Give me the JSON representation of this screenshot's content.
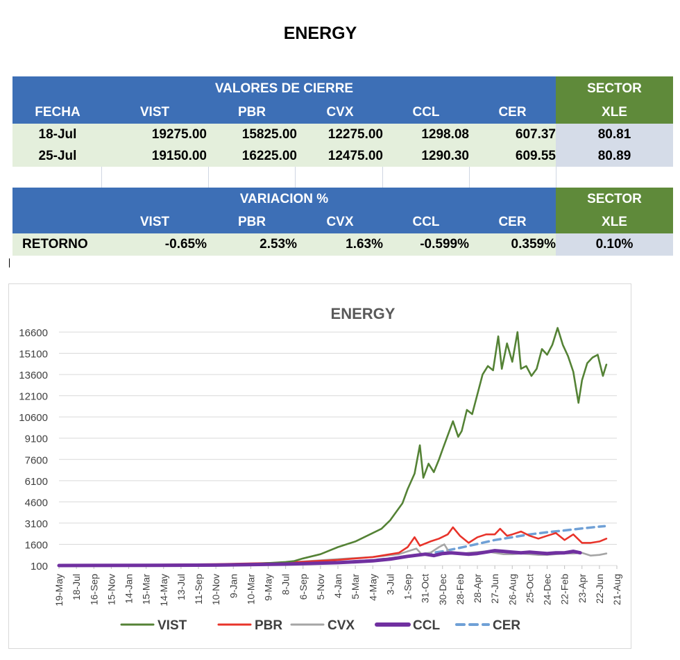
{
  "page_title": "ENERGY",
  "table1": {
    "group_header": "VALORES DE CIERRE",
    "sector_header": "SECTOR",
    "columns": [
      "FECHA",
      "VIST",
      "PBR",
      "CVX",
      "CCL",
      "CER",
      "XLE"
    ],
    "rows": [
      [
        "18-Jul",
        "19275.00",
        "15825.00",
        "12275.00",
        "1298.08",
        "607.37",
        "80.81"
      ],
      [
        "25-Jul",
        "19150.00",
        "16225.00",
        "12475.00",
        "1290.30",
        "609.55",
        "80.89"
      ]
    ]
  },
  "table2": {
    "group_header": "VARIACION %",
    "sector_header": "SECTOR",
    "columns": [
      "",
      "VIST",
      "PBR",
      "CVX",
      "CCL",
      "CER",
      "XLE"
    ],
    "row": [
      "RETORNO",
      "-0.65%",
      "2.53%",
      "1.63%",
      "-0.599%",
      "0.359%",
      "0.10%"
    ]
  },
  "colors": {
    "header_blue": "#3d6fb6",
    "sector_green": "#5f8a3a",
    "data_bg": "#e4efdc",
    "sector_data_bg": "#d5dce8"
  },
  "chart_data": {
    "type": "line",
    "title": "ENERGY",
    "ylim": [
      100,
      16600
    ],
    "yticks": [
      100,
      1600,
      3100,
      4600,
      6100,
      7600,
      9100,
      10600,
      12100,
      13600,
      15100,
      16600
    ],
    "xticks": [
      "19-May",
      "18-Jul",
      "16-Sep",
      "15-Nov",
      "14-Jan",
      "15-Mar",
      "14-May",
      "13-Jul",
      "11-Sep",
      "10-Nov",
      "9-Jan",
      "10-Mar",
      "9-May",
      "8-Jul",
      "6-Sep",
      "5-Nov",
      "4-Jan",
      "5-Mar",
      "4-May",
      "3-Jul",
      "1-Sep",
      "31-Oct",
      "30-Dec",
      "28-Feb",
      "28-Apr",
      "27-Jun",
      "26-Aug",
      "25-Oct",
      "24-Dec",
      "22-Feb",
      "23-Apr",
      "22-Jun",
      "21-Aug"
    ],
    "grid": true,
    "legend_position": "bottom",
    "series": [
      {
        "name": "VIST",
        "color": "#548235",
        "style": "solid",
        "points": [
          [
            0,
            100
          ],
          [
            4,
            110
          ],
          [
            7,
            130
          ],
          [
            9,
            160
          ],
          [
            11,
            200
          ],
          [
            13,
            350
          ],
          [
            13.5,
            420
          ],
          [
            14,
            600
          ],
          [
            15,
            900
          ],
          [
            16,
            1400
          ],
          [
            17,
            1800
          ],
          [
            18,
            2400
          ],
          [
            18.5,
            2700
          ],
          [
            19,
            3300
          ],
          [
            19.7,
            4500
          ],
          [
            20,
            5500
          ],
          [
            20.4,
            6600
          ],
          [
            20.7,
            8600
          ],
          [
            20.9,
            6300
          ],
          [
            21.2,
            7300
          ],
          [
            21.5,
            6700
          ],
          [
            21.8,
            7600
          ],
          [
            22,
            8300
          ],
          [
            22.3,
            9300
          ],
          [
            22.6,
            10300
          ],
          [
            22.9,
            9200
          ],
          [
            23.1,
            9600
          ],
          [
            23.4,
            11100
          ],
          [
            23.7,
            10800
          ],
          [
            24,
            12200
          ],
          [
            24.3,
            13600
          ],
          [
            24.6,
            14200
          ],
          [
            24.9,
            13900
          ],
          [
            25.2,
            16300
          ],
          [
            25.4,
            14000
          ],
          [
            25.7,
            15800
          ],
          [
            26,
            14500
          ],
          [
            26.3,
            16600
          ],
          [
            26.5,
            14000
          ],
          [
            26.8,
            14200
          ],
          [
            27.1,
            13500
          ],
          [
            27.4,
            14000
          ],
          [
            27.7,
            15400
          ],
          [
            28,
            15000
          ],
          [
            28.3,
            15700
          ],
          [
            28.6,
            17000
          ],
          [
            28.9,
            15700
          ],
          [
            29.2,
            14900
          ],
          [
            29.5,
            13800
          ],
          [
            29.8,
            11600
          ],
          [
            30,
            13200
          ],
          [
            30.3,
            14400
          ],
          [
            30.6,
            14800
          ],
          [
            30.9,
            15000
          ],
          [
            31.2,
            13500
          ],
          [
            31.4,
            14300
          ]
        ]
      },
      {
        "name": "PBR",
        "color": "#e8332a",
        "style": "solid",
        "points": [
          [
            0,
            100
          ],
          [
            5,
            150
          ],
          [
            9,
            200
          ],
          [
            13,
            300
          ],
          [
            16,
            500
          ],
          [
            18,
            700
          ],
          [
            19.5,
            1000
          ],
          [
            20,
            1400
          ],
          [
            20.4,
            2100
          ],
          [
            20.7,
            1500
          ],
          [
            21.3,
            1800
          ],
          [
            21.8,
            2000
          ],
          [
            22.3,
            2300
          ],
          [
            22.6,
            2800
          ],
          [
            23,
            2200
          ],
          [
            23.5,
            1700
          ],
          [
            24,
            2100
          ],
          [
            24.5,
            2300
          ],
          [
            25,
            2300
          ],
          [
            25.3,
            2700
          ],
          [
            25.7,
            2200
          ],
          [
            26,
            2300
          ],
          [
            26.5,
            2500
          ],
          [
            27,
            2200
          ],
          [
            27.5,
            2000
          ],
          [
            28,
            2200
          ],
          [
            28.5,
            2400
          ],
          [
            29,
            1900
          ],
          [
            29.5,
            2300
          ],
          [
            30,
            1700
          ],
          [
            30.5,
            1700
          ],
          [
            31,
            1800
          ],
          [
            31.4,
            2000
          ]
        ]
      },
      {
        "name": "CVX",
        "color": "#a5a5a5",
        "style": "solid",
        "points": [
          [
            0,
            100
          ],
          [
            5,
            140
          ],
          [
            9,
            180
          ],
          [
            13,
            300
          ],
          [
            16,
            550
          ],
          [
            18,
            700
          ],
          [
            19.5,
            900
          ],
          [
            20,
            1100
          ],
          [
            20.5,
            1300
          ],
          [
            20.8,
            900
          ],
          [
            21.3,
            1000
          ],
          [
            21.8,
            1400
          ],
          [
            22.1,
            1600
          ],
          [
            22.4,
            1000
          ],
          [
            23,
            900
          ],
          [
            23.5,
            1000
          ],
          [
            24,
            1050
          ],
          [
            24.5,
            1100
          ],
          [
            25,
            1000
          ],
          [
            25.5,
            900
          ],
          [
            26,
            900
          ],
          [
            26.5,
            950
          ],
          [
            27,
            900
          ],
          [
            27.5,
            850
          ],
          [
            28,
            850
          ],
          [
            28.5,
            900
          ],
          [
            29,
            950
          ],
          [
            29.5,
            950
          ],
          [
            30,
            1000
          ],
          [
            30.5,
            800
          ],
          [
            31,
            850
          ],
          [
            31.4,
            950
          ]
        ]
      },
      {
        "name": "CCL",
        "color": "#7030a0",
        "style": "thick",
        "points": [
          [
            0,
            100
          ],
          [
            5,
            115
          ],
          [
            9,
            130
          ],
          [
            13,
            200
          ],
          [
            16,
            300
          ],
          [
            18,
            430
          ],
          [
            19,
            550
          ],
          [
            20,
            750
          ],
          [
            21,
            900
          ],
          [
            21.5,
            800
          ],
          [
            22,
            950
          ],
          [
            22.5,
            1000
          ],
          [
            23,
            950
          ],
          [
            23.5,
            900
          ],
          [
            24,
            950
          ],
          [
            24.5,
            1050
          ],
          [
            25,
            1150
          ],
          [
            25.5,
            1100
          ],
          [
            26,
            1050
          ],
          [
            26.5,
            1000
          ],
          [
            27,
            1050
          ],
          [
            27.5,
            1000
          ],
          [
            28,
            950
          ],
          [
            28.5,
            1000
          ],
          [
            29,
            1000
          ],
          [
            29.5,
            1100
          ],
          [
            29.9,
            1000
          ]
        ]
      },
      {
        "name": "CER",
        "color": "#6fa0d6",
        "style": "dashed",
        "points": [
          [
            0,
            100
          ],
          [
            5,
            120
          ],
          [
            9,
            140
          ],
          [
            13,
            200
          ],
          [
            16,
            300
          ],
          [
            18,
            480
          ],
          [
            19,
            600
          ],
          [
            20,
            780
          ],
          [
            21,
            930
          ],
          [
            22,
            1100
          ],
          [
            23,
            1350
          ],
          [
            24,
            1620
          ],
          [
            25,
            1900
          ],
          [
            26,
            2100
          ],
          [
            27,
            2300
          ],
          [
            28,
            2450
          ],
          [
            29,
            2580
          ],
          [
            30,
            2720
          ],
          [
            31,
            2850
          ],
          [
            31.3,
            2880
          ]
        ]
      }
    ]
  }
}
